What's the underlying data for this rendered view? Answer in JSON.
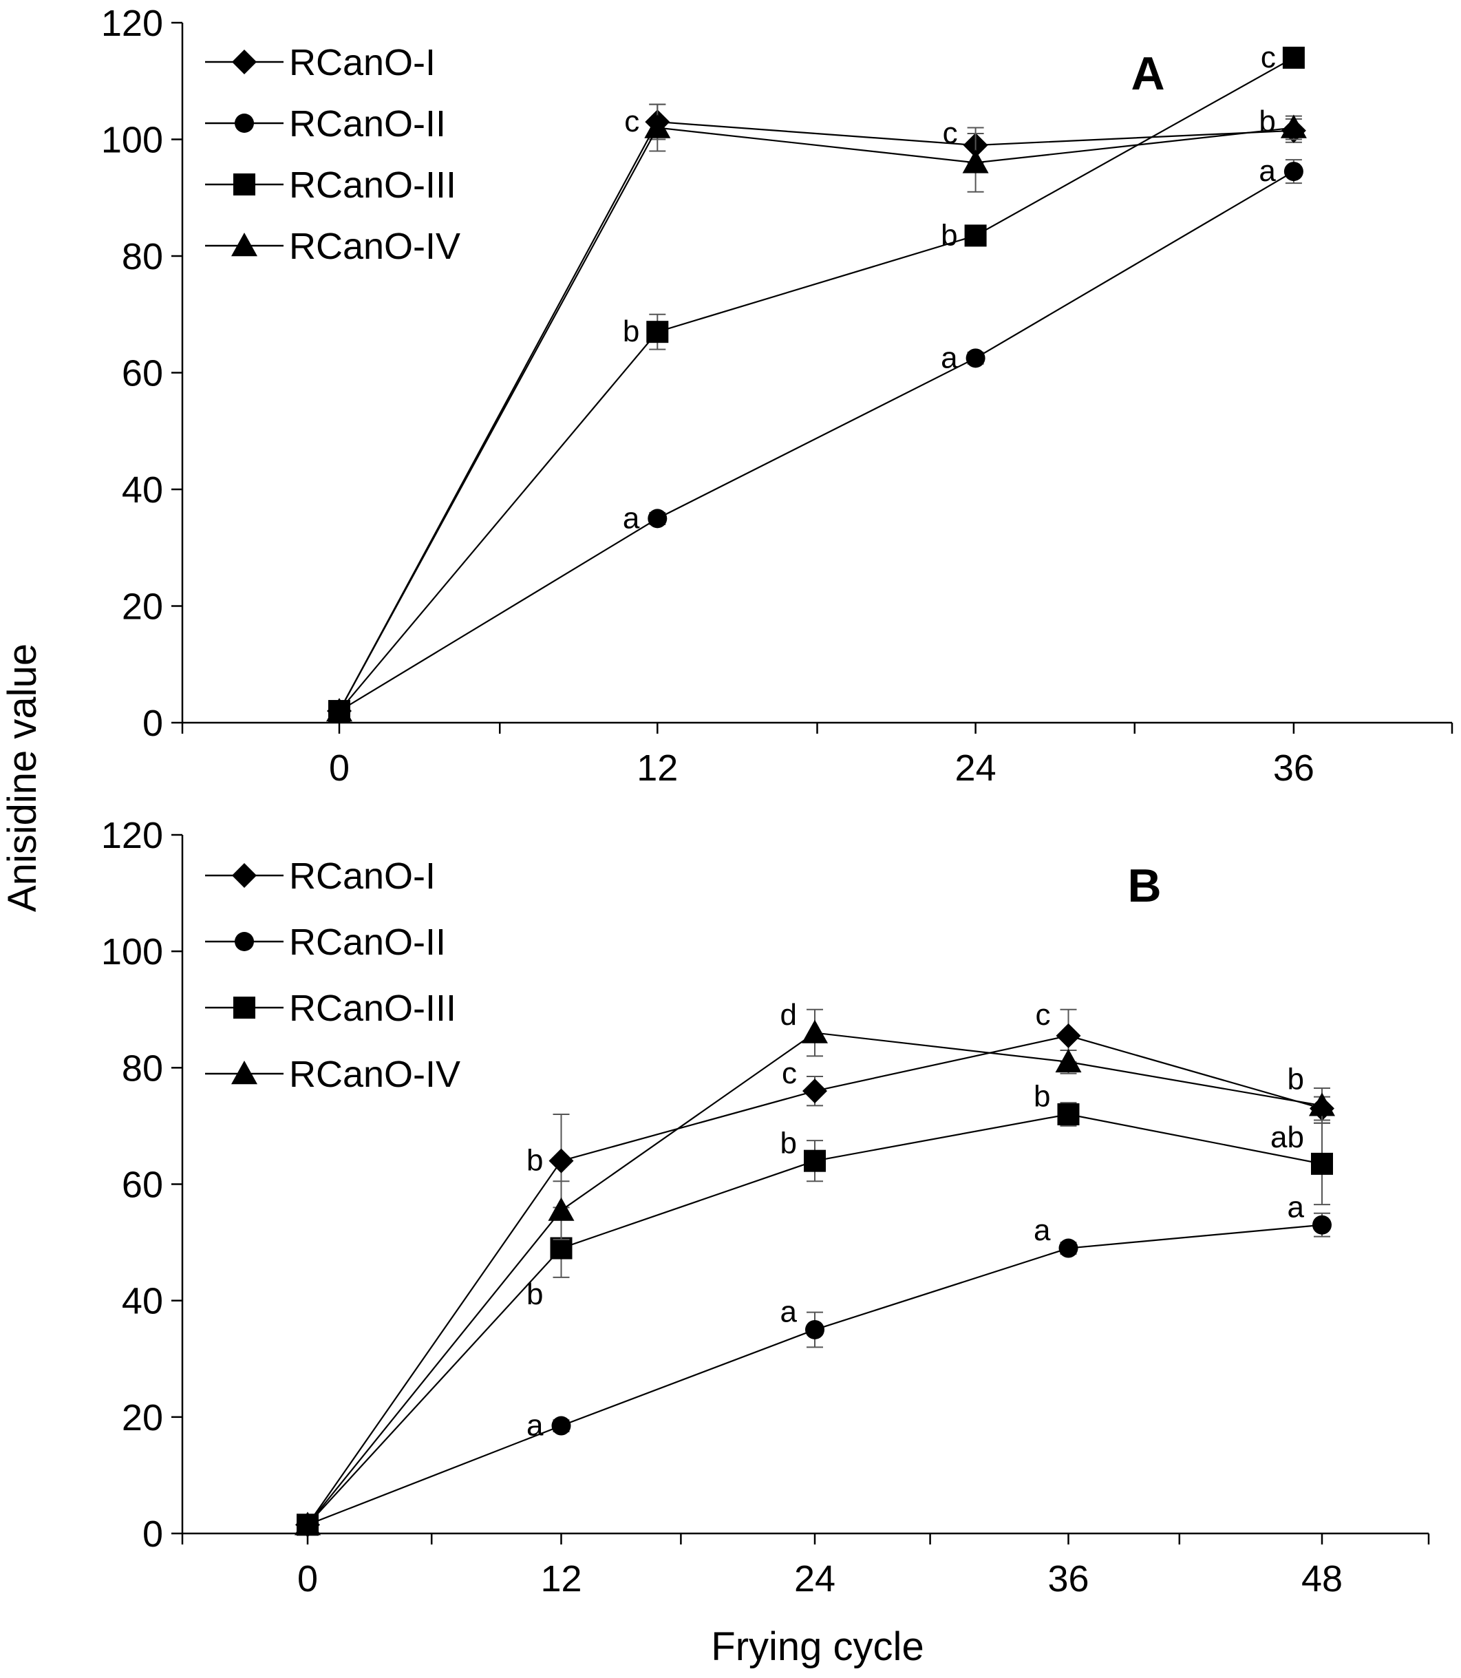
{
  "figure": {
    "ylabel": "Anisidine value",
    "xlabel": "Frying cycle"
  },
  "chart_data": [
    {
      "type": "line",
      "panel_label": "A",
      "x": [
        0,
        12,
        24,
        36
      ],
      "xticks": [
        "0",
        "12",
        "24",
        "36"
      ],
      "ylim": [
        0,
        120
      ],
      "yticks": [
        "0",
        "20",
        "40",
        "60",
        "80",
        "100",
        "120"
      ],
      "ylabel": "Anisidine value",
      "legend_position": "top-left",
      "series": [
        {
          "name": "RCanO-I",
          "marker": "diamond",
          "values": [
            2,
            103,
            99,
            101.5
          ],
          "errors": [
            0,
            3,
            3,
            2
          ]
        },
        {
          "name": "RCanO-II",
          "marker": "circle",
          "values": [
            2,
            35,
            62.5,
            94.5
          ],
          "errors": [
            0,
            1,
            1,
            2
          ]
        },
        {
          "name": "RCanO-III",
          "marker": "square",
          "values": [
            2,
            67,
            83.5,
            114
          ],
          "errors": [
            0,
            3,
            1,
            1
          ]
        },
        {
          "name": "RCanO-IV",
          "marker": "triangle",
          "values": [
            2,
            102,
            96,
            102
          ],
          "errors": [
            0,
            4,
            5,
            2
          ]
        }
      ],
      "annotations": [
        {
          "x": 12,
          "y": 103,
          "text": "c"
        },
        {
          "x": 12,
          "y": 67,
          "text": "b"
        },
        {
          "x": 12,
          "y": 35,
          "text": "a"
        },
        {
          "x": 24,
          "y": 101,
          "text": "c"
        },
        {
          "x": 24,
          "y": 83.5,
          "text": "b"
        },
        {
          "x": 24,
          "y": 62.5,
          "text": "a"
        },
        {
          "x": 36,
          "y": 114,
          "text": "c"
        },
        {
          "x": 36,
          "y": 103,
          "text": "b"
        },
        {
          "x": 36,
          "y": 94.5,
          "text": "a"
        }
      ]
    },
    {
      "type": "line",
      "panel_label": "B",
      "x": [
        0,
        12,
        24,
        36,
        48
      ],
      "xticks": [
        "0",
        "12",
        "24",
        "36",
        "48"
      ],
      "ylim": [
        0,
        120
      ],
      "yticks": [
        "0",
        "20",
        "40",
        "60",
        "80",
        "100",
        "120"
      ],
      "ylabel": "Anisidine value",
      "xlabel": "Frying cycle",
      "legend_position": "top-left",
      "series": [
        {
          "name": "RCanO-I",
          "marker": "diamond",
          "values": [
            1.5,
            64,
            76,
            85.5,
            73
          ],
          "errors": [
            0,
            8,
            2.5,
            4.5,
            2
          ]
        },
        {
          "name": "RCanO-II",
          "marker": "circle",
          "values": [
            1.5,
            18.5,
            35,
            49,
            53
          ],
          "errors": [
            0,
            1,
            3,
            1,
            2
          ]
        },
        {
          "name": "RCanO-III",
          "marker": "square",
          "values": [
            1.5,
            49,
            64,
            72,
            63.5
          ],
          "errors": [
            0,
            5,
            3.5,
            2,
            7
          ]
        },
        {
          "name": "RCanO-IV",
          "marker": "triangle",
          "values": [
            1.5,
            55.5,
            86,
            81,
            73.5
          ],
          "errors": [
            0,
            5,
            4,
            2,
            3
          ]
        }
      ],
      "annotations": [
        {
          "x": 12,
          "y": 64,
          "text": "b"
        },
        {
          "x": 12,
          "y": 41,
          "text": "b"
        },
        {
          "x": 12,
          "y": 18.5,
          "text": "a"
        },
        {
          "x": 24,
          "y": 89,
          "text": "d"
        },
        {
          "x": 24,
          "y": 79,
          "text": "c"
        },
        {
          "x": 24,
          "y": 67,
          "text": "b"
        },
        {
          "x": 24,
          "y": 38,
          "text": "a"
        },
        {
          "x": 36,
          "y": 89,
          "text": "c"
        },
        {
          "x": 36,
          "y": 75,
          "text": "b"
        },
        {
          "x": 36,
          "y": 52,
          "text": "a"
        },
        {
          "x": 48,
          "y": 78,
          "text": "b"
        },
        {
          "x": 48,
          "y": 68,
          "text": "ab"
        },
        {
          "x": 48,
          "y": 56,
          "text": "a"
        }
      ]
    }
  ]
}
